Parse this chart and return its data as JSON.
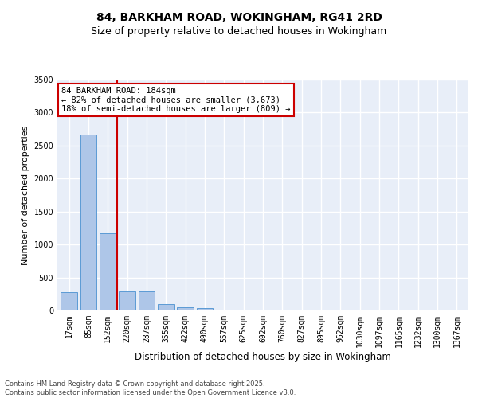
{
  "title": "84, BARKHAM ROAD, WOKINGHAM, RG41 2RD",
  "subtitle": "Size of property relative to detached houses in Wokingham",
  "xlabel": "Distribution of detached houses by size in Wokingham",
  "ylabel": "Number of detached properties",
  "bin_labels": [
    "17sqm",
    "85sqm",
    "152sqm",
    "220sqm",
    "287sqm",
    "355sqm",
    "422sqm",
    "490sqm",
    "557sqm",
    "625sqm",
    "692sqm",
    "760sqm",
    "827sqm",
    "895sqm",
    "962sqm",
    "1030sqm",
    "1097sqm",
    "1165sqm",
    "1232sqm",
    "1300sqm",
    "1367sqm"
  ],
  "bar_heights": [
    280,
    2670,
    1170,
    295,
    295,
    95,
    45,
    35,
    0,
    0,
    0,
    0,
    0,
    0,
    0,
    0,
    0,
    0,
    0,
    0,
    0
  ],
  "bar_color": "#aec6e8",
  "bar_edgecolor": "#5b9bd5",
  "bg_color": "#e8eef8",
  "grid_color": "#ffffff",
  "vline_x": 2.5,
  "vline_color": "#cc0000",
  "annotation_text": "84 BARKHAM ROAD: 184sqm\n← 82% of detached houses are smaller (3,673)\n18% of semi-detached houses are larger (809) →",
  "annotation_box_color": "#cc0000",
  "annotation_text_color": "#000000",
  "ylim": [
    0,
    3500
  ],
  "yticks": [
    0,
    500,
    1000,
    1500,
    2000,
    2500,
    3000,
    3500
  ],
  "footer_line1": "Contains HM Land Registry data © Crown copyright and database right 2025.",
  "footer_line2": "Contains public sector information licensed under the Open Government Licence v3.0.",
  "title_fontsize": 10,
  "subtitle_fontsize": 9,
  "tick_fontsize": 7,
  "ylabel_fontsize": 8,
  "xlabel_fontsize": 8.5,
  "footer_fontsize": 6,
  "annot_fontsize": 7.5
}
